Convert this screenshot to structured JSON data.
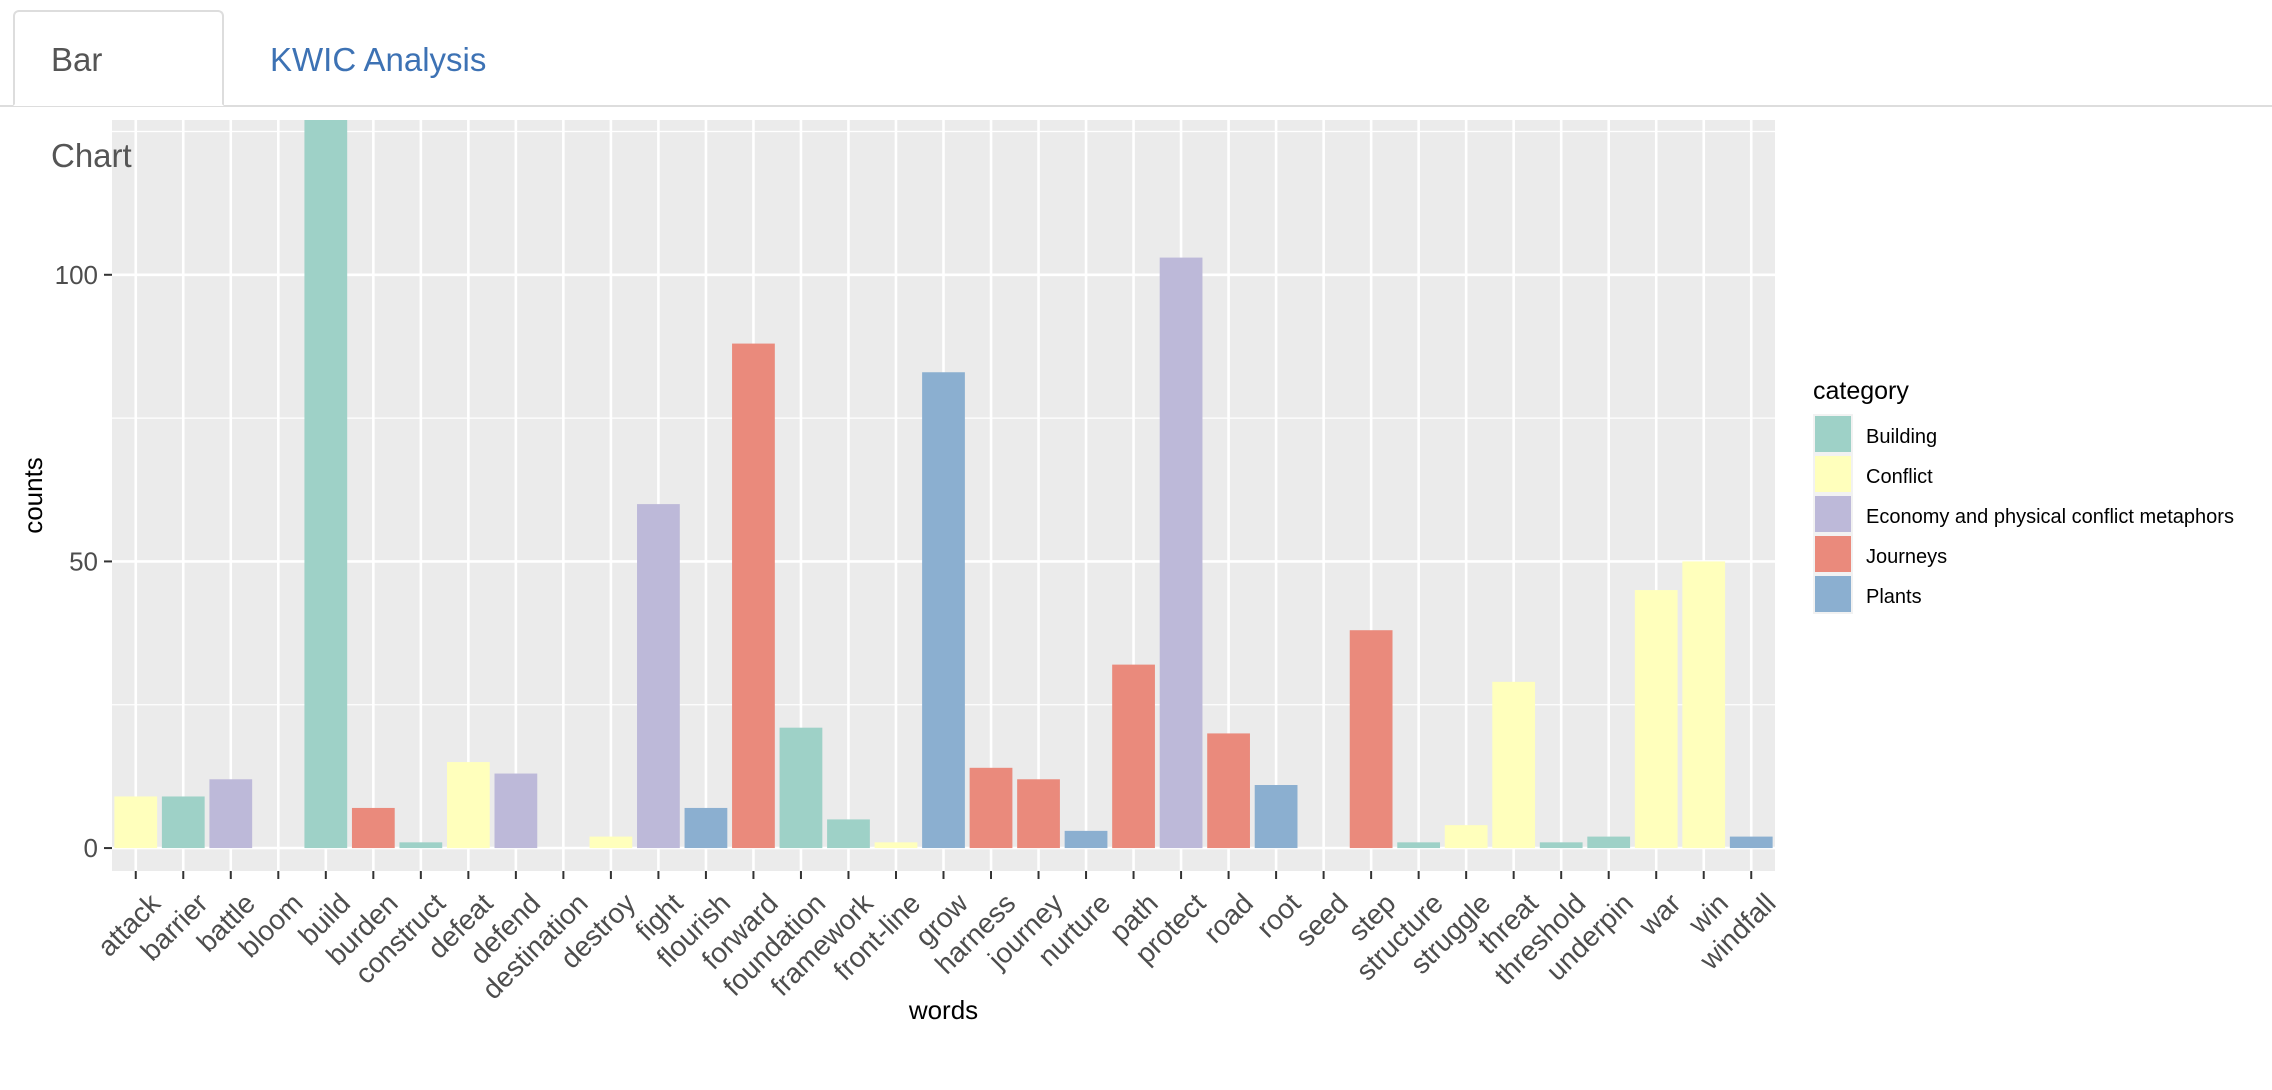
{
  "tabs": [
    {
      "label": "Bar Chart",
      "active": true
    },
    {
      "label": "KWIC Analysis",
      "active": false
    }
  ],
  "colors": {
    "tab_active_text": "#555555",
    "tab_link_text": "#3d72b4",
    "panel_bg": "#ebebeb",
    "grid": "#ffffff"
  },
  "chart_data": {
    "type": "bar",
    "title": "",
    "xlabel": "words",
    "ylabel": "counts",
    "ylim": [
      -4,
      127
    ],
    "yticks": [
      0,
      50,
      100
    ],
    "grid": true,
    "legend_position": "right",
    "legend": {
      "title": "category",
      "entries": [
        {
          "name": "Building",
          "color": "#9ed1c7"
        },
        {
          "name": "Conflict",
          "color": "#ffffbc"
        },
        {
          "name": "Economy and physical conflict metaphors",
          "color": "#bdb9d9"
        },
        {
          "name": "Journeys",
          "color": "#ea8a7c"
        },
        {
          "name": "Plants",
          "color": "#8bafd0"
        }
      ]
    },
    "categories": [
      "attack",
      "barrier",
      "battle",
      "bloom",
      "build",
      "burden",
      "construct",
      "defeat",
      "defend",
      "destination",
      "destroy",
      "fight",
      "flourish",
      "forward",
      "foundation",
      "framework",
      "front-line",
      "grow",
      "harness",
      "journey",
      "nurture",
      "path",
      "protect",
      "road",
      "root",
      "seed",
      "step",
      "structure",
      "struggle",
      "threat",
      "threshold",
      "underpin",
      "war",
      "win",
      "windfall"
    ],
    "values": [
      9,
      9,
      12,
      0,
      127,
      7,
      1,
      15,
      13,
      0,
      2,
      60,
      7,
      88,
      21,
      5,
      1,
      83,
      14,
      12,
      3,
      32,
      103,
      20,
      11,
      0,
      38,
      1,
      4,
      29,
      1,
      2,
      45,
      50,
      2
    ],
    "bar_category": [
      "Conflict",
      "Building",
      "Economy and physical conflict metaphors",
      "Plants",
      "Building",
      "Journeys",
      "Building",
      "Conflict",
      "Economy and physical conflict metaphors",
      "Journeys",
      "Conflict",
      "Economy and physical conflict metaphors",
      "Plants",
      "Journeys",
      "Building",
      "Building",
      "Conflict",
      "Plants",
      "Journeys",
      "Journeys",
      "Plants",
      "Journeys",
      "Economy and physical conflict metaphors",
      "Journeys",
      "Plants",
      "Plants",
      "Journeys",
      "Building",
      "Conflict",
      "Conflict",
      "Building",
      "Building",
      "Conflict",
      "Conflict",
      "Plants"
    ]
  }
}
